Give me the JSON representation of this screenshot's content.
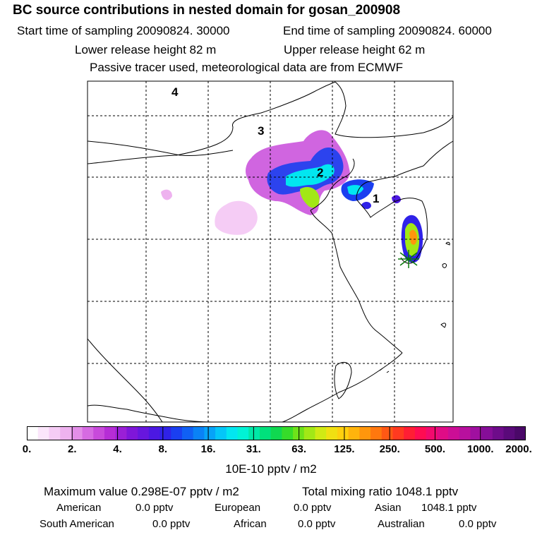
{
  "header": {
    "title": "BC  source contributions in nested domain for gosan_200908",
    "start_time": "Start time of sampling 20090824. 30000",
    "end_time": "End time of sampling 20090824. 60000",
    "lower_height": "Lower release height   82 m",
    "upper_height": "Upper release height   62 m",
    "tracer_note": "Passive tracer used, meteorological data are from ECMWF"
  },
  "map": {
    "region_labels": [
      "1",
      "2",
      "3",
      "4"
    ],
    "receptor_marker": "receptor-star"
  },
  "colorbar": {
    "tick_labels": [
      "0.",
      "2.",
      "4.",
      "8.",
      "16.",
      "31.",
      "63.",
      "125.",
      "250.",
      "500.",
      "1000.",
      "2000."
    ],
    "colors": [
      "#ffffff",
      "#fbe6fb",
      "#f5ccf5",
      "#eeb2ef",
      "#e38fe8",
      "#d66be2",
      "#c84adb",
      "#b62dd6",
      "#9a1fd6",
      "#7f16d9",
      "#6716de",
      "#4c18e2",
      "#2f22e8",
      "#1a3ff0",
      "#1060f4",
      "#0a82f6",
      "#06a3f8",
      "#04c6f8",
      "#02e6f0",
      "#00f2d6",
      "#00e8a8",
      "#00e07c",
      "#10d850",
      "#36dc2a",
      "#6ee21a",
      "#a2e816",
      "#d0ea14",
      "#f0e012",
      "#ffd00e",
      "#ffb40c",
      "#ff960c",
      "#ff780e",
      "#ff5814",
      "#ff3a20",
      "#ff1e34",
      "#ff0c52",
      "#f20a6e",
      "#e00c86",
      "#cc0e96",
      "#b8109e",
      "#a010a0",
      "#860e98",
      "#6e0c8a",
      "#5a0a7a",
      "#4a0868"
    ],
    "units_label": "10E-10 pptv / m2"
  },
  "stats": {
    "max_value": "Maximum value  0.298E-07 pptv / m2",
    "total_mixing": "Total mixing ratio     1048.1 pptv",
    "american_label": "American",
    "american_value": "0.0 pptv",
    "european_label": "European",
    "european_value": "0.0 pptv",
    "asian_label": "Asian",
    "asian_value": "1048.1 pptv",
    "south_american_label": "South American",
    "south_american_value": "0.0 pptv",
    "african_label": "African",
    "african_value": "0.0 pptv",
    "australian_label": "Australian",
    "australian_value": "0.0 pptv"
  }
}
